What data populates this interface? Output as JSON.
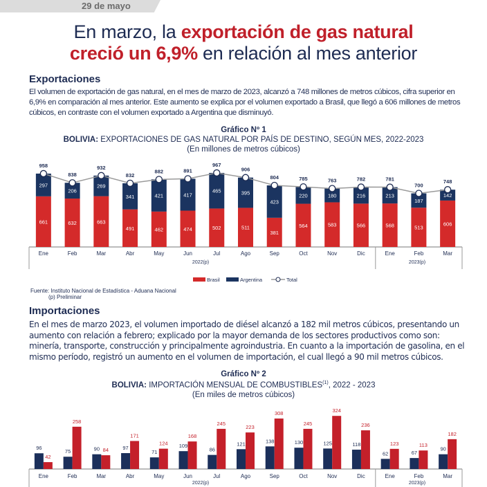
{
  "header": {
    "date": "29 de mayo"
  },
  "headline": {
    "line1_plain": "En marzo, la ",
    "line1_highlight": "exportación de gas natural",
    "line2_highlight": "creció un 6,9%",
    "line2_plain": " en relación al mes anterior"
  },
  "exports": {
    "heading": "Exportaciones",
    "paragraph": "El volumen de exportación de gas natural, en el mes de marzo de 2023, alcanzó a 748 millones de metros cúbicos, cifra superior en 6,9% en comparación al mes anterior. Este aumento se explica por el volumen exportado a Brasil, que llegó a 606 millones de metros cúbicos, en contraste con el volumen exportado a Argentina que disminuyó."
  },
  "imports": {
    "heading": "Importaciones",
    "paragraph": "En el mes de marzo 2023, el volumen importado de diésel alcanzó a 182 mil metros cúbicos, presentando un aumento con relación a febrero; explicado por la mayor demanda de los sectores productivos como son: minería, transporte, construcción y principalmente agroindustria. En cuanto a la importación de gasolina, en el mismo período, registró un aumento en el volumen de importación, el cual llegó a 90 mil metros cúbicos."
  },
  "chart_data": [
    {
      "type": "bar",
      "stacked": true,
      "number": "Gráfico Nº 1",
      "title_bold": "BOLIVIA:",
      "title": " EXPORTACIONES DE GAS NATURAL POR PAÍS DE DESTINO, SEGÚN MES, 2022-2023",
      "subtitle": "(En millones de metros cúbicos)",
      "categories": [
        "Ene",
        "Feb",
        "Mar",
        "Abr",
        "May",
        "Jun",
        "Jul",
        "Ago",
        "Sep",
        "Oct",
        "Nov",
        "Dic",
        "Ene",
        "Feb",
        "Mar"
      ],
      "year_groups": [
        {
          "label": "2022(p)",
          "count": 12
        },
        {
          "label": "2023(p)",
          "count": 3
        }
      ],
      "series": [
        {
          "name": "Brasil",
          "color": "#d42a2a",
          "values": [
            661,
            632,
            663,
            491,
            462,
            474,
            502,
            511,
            381,
            564,
            583,
            566,
            568,
            513,
            606
          ]
        },
        {
          "name": "Argentina",
          "color": "#1b3460",
          "values": [
            297,
            206,
            269,
            341,
            421,
            417,
            465,
            395,
            423,
            220,
            180,
            216,
            213,
            187,
            142
          ]
        },
        {
          "name": "Total",
          "type": "line",
          "color": "#9a9a9a",
          "values": [
            958,
            838,
            932,
            832,
            882,
            891,
            967,
            906,
            804,
            785,
            763,
            782,
            781,
            700,
            748
          ]
        }
      ],
      "legend": "bottom",
      "source": "Fuente: Instituto Nacional de Estadística - Aduana Nacional",
      "note": "(p) Preliminar"
    },
    {
      "type": "bar",
      "number": "Gráfico Nº 2",
      "title_bold": "BOLIVIA:",
      "title": " IMPORTACIÓN MENSUAL DE COMBUSTIBLES",
      "title_sup": "(1)",
      "title_tail": ", 2022 - 2023",
      "subtitle": "(En miles de metros cúbicos)",
      "categories": [
        "Ene",
        "Feb",
        "Mar",
        "Abr",
        "May",
        "Jun",
        "Jul",
        "Ago",
        "Sep",
        "Oct",
        "Nov",
        "Dic",
        "Ene",
        "Feb",
        "Mar"
      ],
      "year_groups": [
        {
          "label": "2022(p)",
          "count": 12
        },
        {
          "label": "2023(p)",
          "count": 3
        }
      ],
      "series": [
        {
          "color": "#1b2f5a",
          "values": [
            96,
            75,
            90,
            97,
            71,
            109,
            86,
            121,
            138,
            130,
            125,
            118,
            62,
            67,
            90
          ]
        },
        {
          "color": "#c4202a",
          "values": [
            42,
            258,
            84,
            171,
            124,
            168,
            245,
            223,
            308,
            245,
            324,
            236,
            123,
            113,
            182
          ]
        }
      ]
    }
  ]
}
